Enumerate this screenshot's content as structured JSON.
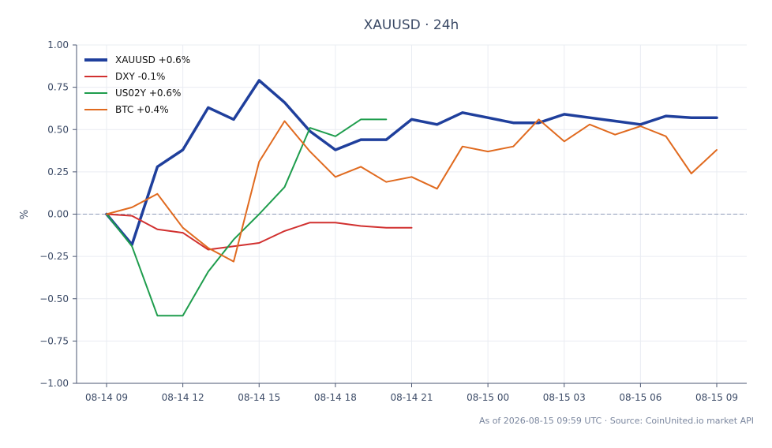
{
  "chart_data": {
    "type": "line",
    "title": "XAUUSD · 24h",
    "ylabel": "%",
    "xlabel": "",
    "ylim": [
      -1.0,
      1.0
    ],
    "yticks": [
      1.0,
      0.75,
      0.5,
      0.25,
      0.0,
      -0.25,
      -0.5,
      -0.75,
      -1.0
    ],
    "ytick_labels": [
      "1.00",
      "0.75",
      "0.50",
      "0.25",
      "0.00",
      "−0.25",
      "−0.50",
      "−0.75",
      "−1.00"
    ],
    "xticks": [
      {
        "label": "08-14 09",
        "hour": 0
      },
      {
        "label": "08-14 12",
        "hour": 3
      },
      {
        "label": "08-14 15",
        "hour": 6
      },
      {
        "label": "08-14 18",
        "hour": 9
      },
      {
        "label": "08-14 21",
        "hour": 12
      },
      {
        "label": "08-15 00",
        "hour": 15
      },
      {
        "label": "08-15 03",
        "hour": 18
      },
      {
        "label": "08-15 06",
        "hour": 21
      },
      {
        "label": "08-15 09",
        "hour": 24
      }
    ],
    "x_hours": [
      0,
      1,
      2,
      3,
      4,
      5,
      6,
      7,
      8,
      9,
      10,
      11,
      12,
      13,
      14,
      15,
      16,
      17,
      18,
      19,
      20,
      21,
      22,
      23,
      24
    ],
    "grid": true,
    "legend_position": "top-left",
    "series": [
      {
        "name": "XAUUSD +0.6%",
        "color": "#1f3f9c",
        "emphasis": true,
        "values": [
          0.0,
          -0.18,
          0.28,
          0.38,
          0.63,
          0.56,
          0.79,
          0.66,
          0.49,
          0.38,
          0.44,
          0.44,
          0.56,
          0.53,
          0.6,
          0.57,
          0.54,
          0.54,
          0.59,
          0.57,
          0.55,
          0.53,
          0.58,
          0.57,
          0.57
        ]
      },
      {
        "name": "DXY -0.1%",
        "color": "#d1302f",
        "emphasis": false,
        "values": [
          0.0,
          -0.01,
          -0.09,
          -0.11,
          -0.21,
          -0.19,
          -0.17,
          -0.1,
          -0.05,
          -0.05,
          -0.07,
          -0.08,
          -0.08
        ]
      },
      {
        "name": "US02Y +0.6%",
        "color": "#1f9d4d",
        "emphasis": false,
        "values": [
          0.0,
          -0.19,
          -0.6,
          -0.6,
          -0.34,
          -0.15,
          0.0,
          0.16,
          0.51,
          0.46,
          0.56,
          0.56
        ]
      },
      {
        "name": "BTC +0.4%",
        "color": "#e06a1f",
        "emphasis": false,
        "values": [
          0.0,
          0.04,
          0.12,
          -0.08,
          -0.2,
          -0.28,
          0.31,
          0.55,
          0.37,
          0.22,
          0.28,
          0.19,
          0.22,
          0.15,
          0.4,
          0.37,
          0.4,
          0.56,
          0.43,
          0.53,
          0.47,
          0.52,
          0.46,
          0.24,
          0.38
        ]
      }
    ],
    "zero_line": {
      "value": 0.0,
      "color": "#8e9ab8",
      "style": "dashed"
    },
    "footnote": "As of 2026-08-15 09:59 UTC · Source: CoinUnited.io market API"
  }
}
